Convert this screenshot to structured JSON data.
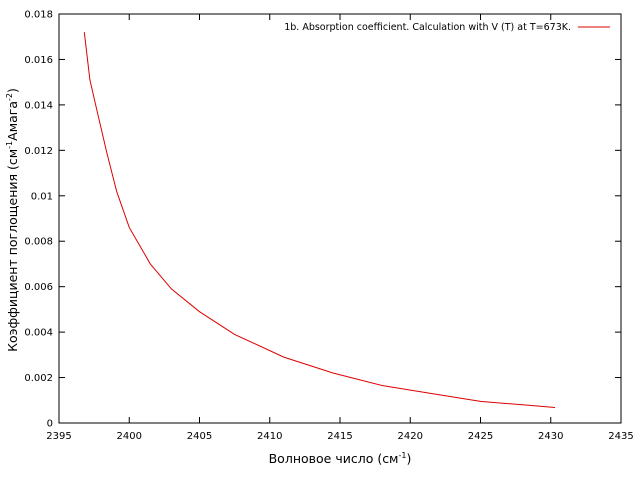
{
  "chart_data": {
    "type": "line",
    "xlabel": "Волновое число (см",
    "xlabel_sup": "-1",
    "xlabel_end": ")",
    "ylabel": "Коэффициент поглощения (см",
    "ylabel_sup1": "-1",
    "ylabel_mid": "Амага",
    "ylabel_sup2": "-2",
    "ylabel_end": ")",
    "xlim": [
      2395,
      2435
    ],
    "ylim": [
      0,
      0.018
    ],
    "xticks": [
      2395,
      2400,
      2405,
      2410,
      2415,
      2420,
      2425,
      2430,
      2435
    ],
    "yticks": [
      "0",
      "0.002",
      "0.004",
      "0.006",
      "0.008",
      "0.01",
      "0.012",
      "0.014",
      "0.016",
      "0.018"
    ],
    "grid": false,
    "legend_position": "top-right",
    "series": [
      {
        "name": "1b. Absorption coefficient. Calculation with V (T) at T=673K.",
        "color": "#dd0000",
        "x": [
          2396.8,
          2397.2,
          2397.8,
          2398.4,
          2399.1,
          2400.0,
          2401.5,
          2403.0,
          2405.0,
          2407.5,
          2411.0,
          2414.5,
          2418.0,
          2421.5,
          2425.0,
          2428.0,
          2430.3
        ],
        "y": [
          0.0172,
          0.0151,
          0.0135,
          0.0119,
          0.0102,
          0.0086,
          0.007,
          0.0059,
          0.0049,
          0.0039,
          0.0029,
          0.0022,
          0.00165,
          0.0013,
          0.00095,
          0.0008,
          0.00068
        ]
      }
    ]
  }
}
